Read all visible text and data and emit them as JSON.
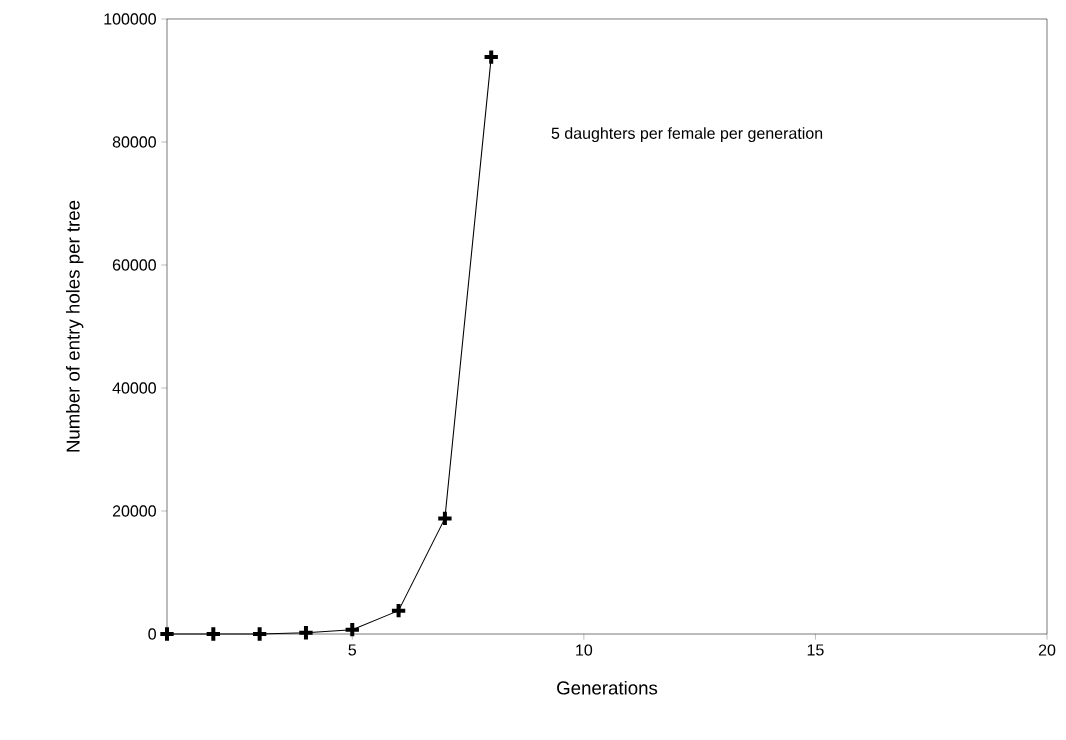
{
  "chart_data": {
    "type": "line",
    "xlabel": "Generations",
    "ylabel": "Number of entry holes per tree",
    "annotations": [
      "5 daughters per female per generation"
    ],
    "x": [
      1,
      2,
      3,
      4,
      5,
      6,
      7,
      8
    ],
    "series": [
      {
        "color": "#000000",
        "values": [
          0,
          0,
          0,
          200,
          700,
          3800,
          18800,
          93800
        ]
      }
    ],
    "xlim": [
      1,
      20
    ],
    "xticks": [
      5,
      10,
      15,
      20
    ],
    "ylim": [
      0,
      100000
    ],
    "yticks": [
      0,
      20000,
      40000,
      60000,
      80000,
      100000
    ],
    "marker": "cross",
    "line_style": "solid"
  }
}
